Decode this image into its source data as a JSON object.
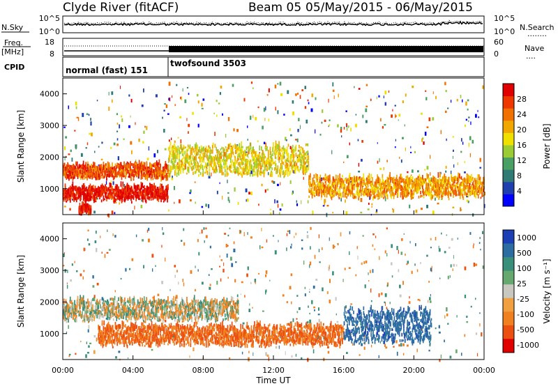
{
  "header": {
    "station": "Clyde River (fitACF)",
    "beam": "Beam 05",
    "date_range": "05/May/2015 - 06/May/2015"
  },
  "noise_panel": {
    "left_label": "N.Sky",
    "right_label": "N.Search",
    "right_legend_line": "........",
    "left_ticks": [
      "10^5",
      "10^0"
    ],
    "right_ticks": [
      "10^5",
      "10^0"
    ]
  },
  "freq_panel": {
    "label_line1": "Freq.",
    "label_line2": "[MHz]",
    "right_label": "Nave",
    "right_legend_line": "....",
    "left_ticks": [
      "18",
      "8"
    ],
    "right_ticks": [
      "60",
      "0"
    ]
  },
  "cpid_panel": {
    "label": "CPID",
    "modes": [
      {
        "text": "normal (fast) 151",
        "start_hour": 0,
        "end_hour": 6
      },
      {
        "text": "twofsound 3503",
        "start_hour": 6,
        "end_hour": 24
      }
    ]
  },
  "colors": {
    "power": [
      "#0000ff",
      "#1f3fae",
      "#2f7a74",
      "#4aa062",
      "#9ccc33",
      "#f0e000",
      "#f0a800",
      "#f07000",
      "#ee3800",
      "#e00000"
    ],
    "velocity_positive": [
      "#1d3fb5",
      "#2d6ea2",
      "#3a8f7a",
      "#66a86d"
    ],
    "velocity_near": "#c8c8c0",
    "velocity_negative": [
      "#f0a040",
      "#f08020",
      "#ec5010",
      "#e00000"
    ]
  },
  "chart_data": [
    {
      "type": "heatmap",
      "title": "",
      "xlabel": "",
      "ylabel": "Slant Range [km]",
      "x_range_hours": [
        0,
        24
      ],
      "xtick_labels": [
        "00:00",
        "04:00",
        "08:00",
        "12:00",
        "16:00",
        "20:00",
        "00:00"
      ],
      "ylim_km": [
        180,
        4500
      ],
      "yticks": [
        1000,
        2000,
        3000,
        4000
      ],
      "colorbar": {
        "label": "Power [dB]",
        "range": [
          0,
          32
        ],
        "tick_values": [
          4,
          8,
          12,
          16,
          20,
          24,
          28
        ],
        "tick_labels": [
          "4",
          "8",
          "12",
          "16",
          "20",
          "24",
          "28"
        ]
      },
      "echo_bands": [
        {
          "range_km": [
            1300,
            1700
          ],
          "hours": [
            0,
            6
          ],
          "power_db": 26
        },
        {
          "range_km": [
            600,
            1000
          ],
          "hours": [
            0,
            6
          ],
          "power_db": 30
        },
        {
          "range_km": [
            1400,
            2300
          ],
          "hours": [
            6,
            14
          ],
          "power_db": 18
        },
        {
          "range_km": [
            700,
            1300
          ],
          "hours": [
            14,
            24
          ],
          "power_db": 22
        },
        {
          "range_km": [
            200,
            400
          ],
          "hours": [
            0.9,
            1.6
          ],
          "power_db": 30
        }
      ]
    },
    {
      "type": "heatmap",
      "title": "",
      "xlabel": "Time UT",
      "ylabel": "Slant Range [km]",
      "x_range_hours": [
        0,
        24
      ],
      "xtick_labels": [
        "00:00",
        "04:00",
        "08:00",
        "12:00",
        "16:00",
        "20:00",
        "00:00"
      ],
      "ylim_km": [
        180,
        4500
      ],
      "yticks": [
        1000,
        2000,
        3000,
        4000
      ],
      "colorbar": {
        "label": "Velocity [m s⁻¹]",
        "tick_labels": [
          "1000",
          "500",
          "100",
          "25",
          "-25",
          "-100",
          "-500",
          "-1000"
        ]
      },
      "echo_bands": [
        {
          "range_km": [
            1400,
            2000
          ],
          "hours": [
            0,
            10
          ],
          "velocity": 0
        },
        {
          "range_km": [
            600,
            1200
          ],
          "hours": [
            2,
            16
          ],
          "velocity": -300
        },
        {
          "range_km": [
            700,
            1700
          ],
          "hours": [
            16,
            21
          ],
          "velocity": 600
        }
      ]
    }
  ]
}
